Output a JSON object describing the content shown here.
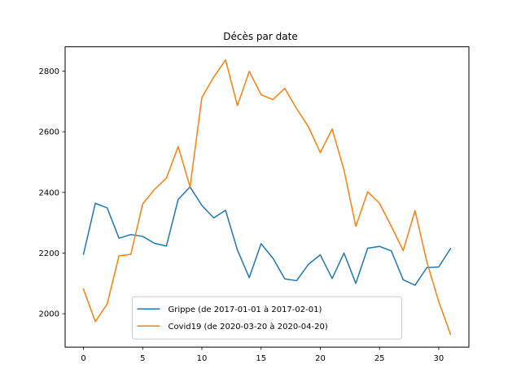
{
  "chart_data": {
    "type": "line",
    "title": "Décès par date",
    "xlabel": "",
    "ylabel": "",
    "xlim": [
      -1.55,
      32.55
    ],
    "ylim": [
      1890,
      2880
    ],
    "xticks": [
      0,
      5,
      10,
      15,
      20,
      25,
      30
    ],
    "yticks": [
      2000,
      2200,
      2400,
      2600,
      2800
    ],
    "grid": false,
    "legend_position": "lower-center",
    "x": [
      0,
      1,
      2,
      3,
      4,
      5,
      6,
      7,
      8,
      9,
      10,
      11,
      12,
      13,
      14,
      15,
      16,
      17,
      18,
      19,
      20,
      21,
      22,
      23,
      24,
      25,
      26,
      27,
      28,
      29,
      30,
      31
    ],
    "series": [
      {
        "name": "Grippe (de 2017-01-01 à 2017-02-01)",
        "color": "#1f77b4",
        "values": [
          2196,
          2364,
          2349,
          2249,
          2261,
          2255,
          2232,
          2223,
          2377,
          2418,
          2357,
          2316,
          2341,
          2210,
          2119,
          2231,
          2183,
          2115,
          2109,
          2163,
          2194,
          2116,
          2200,
          2100,
          2216,
          2222,
          2207,
          2112,
          2094,
          2152,
          2154,
          2215
        ]
      },
      {
        "name": "Covid19 (de 2020-03-20 à 2020-04-20)",
        "color": "#ff7f0e",
        "values": [
          2081,
          1974,
          2032,
          2191,
          2196,
          2362,
          2410,
          2447,
          2551,
          2418,
          2713,
          2780,
          2837,
          2686,
          2799,
          2722,
          2706,
          2743,
          2676,
          2616,
          2531,
          2609,
          2474,
          2288,
          2402,
          2364,
          2288,
          2208,
          2340,
          2171,
          2040,
          1932
        ]
      }
    ]
  }
}
